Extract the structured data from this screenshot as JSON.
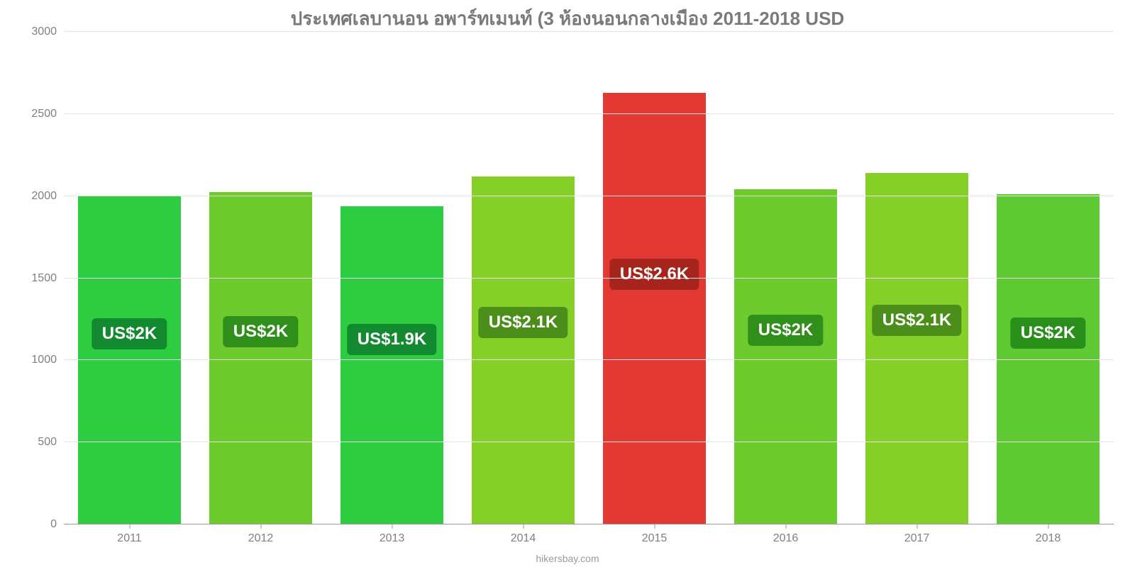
{
  "chart": {
    "type": "bar",
    "title": "ประเทศเลบานอน อพาร์ทเมนท์ (3 ห้องนอนกลางเมือง 2011-2018 USD",
    "title_color": "#7a7a7a",
    "title_fontsize": 26,
    "background_color": "#ffffff",
    "grid_color": "#e6e6e6",
    "axis_color": "#999999",
    "tick_color": "#808080",
    "tick_fontsize": 16,
    "ylim": [
      0,
      3000
    ],
    "ytick_step": 500,
    "yticks": [
      0,
      500,
      1000,
      1500,
      2000,
      2500,
      3000
    ],
    "categories": [
      "2011",
      "2012",
      "2013",
      "2014",
      "2015",
      "2016",
      "2017",
      "2018"
    ],
    "values": [
      2000,
      2025,
      1940,
      2120,
      2630,
      2040,
      2140,
      2010
    ],
    "value_labels": [
      "US$2K",
      "US$2K",
      "US$1.9K",
      "US$2.1K",
      "US$2.6K",
      "US$2K",
      "US$2.1K",
      "US$2K"
    ],
    "bar_colors": [
      "#2ecc40",
      "#6ecb2e",
      "#2ecc40",
      "#86cf29",
      "#e23a33",
      "#6ecb2e",
      "#86cf29",
      "#5fca34"
    ],
    "label_bg_colors": [
      "#138a30",
      "#2f8f1a",
      "#138a30",
      "#4b8f1a",
      "#a5241c",
      "#2f8f1a",
      "#4b8f1a",
      "#2a8f1a"
    ],
    "label_text_color": "#ffffff",
    "label_fontsize": 24,
    "bar_width_pct": 78,
    "footer": "hikersbay.com",
    "footer_color": "#9a9a9a"
  }
}
